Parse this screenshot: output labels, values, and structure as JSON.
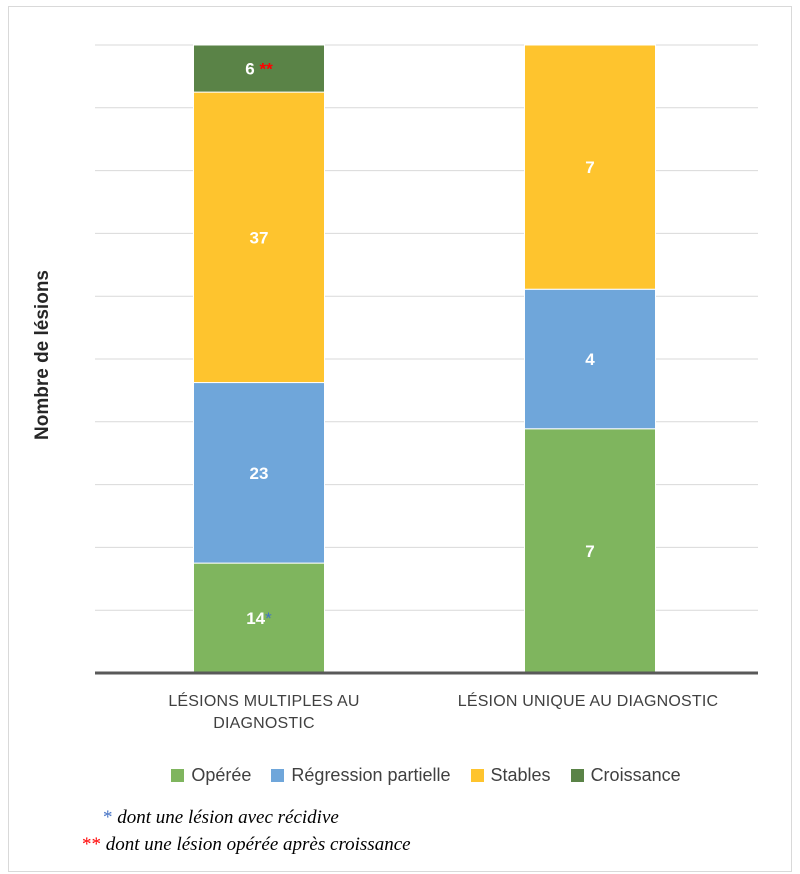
{
  "chart_data": {
    "type": "bar",
    "stacked": true,
    "ylabel": "Nombre de lésions",
    "grid": true,
    "legend_position": "bottom",
    "categories": [
      "LÉSIONS MULTIPLES AU DIAGNOSTIC",
      "LÉSION UNIQUE AU DIAGNOSTIC"
    ],
    "series": [
      {
        "name": "Opérée",
        "color": "#7fb55e",
        "values": [
          14,
          7
        ],
        "labels": [
          "14",
          "7"
        ],
        "marks": [
          "*",
          ""
        ]
      },
      {
        "name": "Régression partielle",
        "color": "#6fa6da",
        "values": [
          23,
          4
        ],
        "labels": [
          "23",
          "4"
        ],
        "marks": [
          "",
          ""
        ]
      },
      {
        "name": "Stables",
        "color": "#fec42e",
        "values": [
          37,
          7
        ],
        "labels": [
          "37",
          "7"
        ],
        "marks": [
          "",
          ""
        ]
      },
      {
        "name": "Croissance",
        "color": "#5a8347",
        "values": [
          6,
          0
        ],
        "labels": [
          "6",
          ""
        ],
        "marks": [
          "**",
          ""
        ]
      }
    ]
  },
  "notes": [
    {
      "mark": "*",
      "mark_color": "#4472c4",
      "text": " dont une lésion avec récidive"
    },
    {
      "mark": "**",
      "mark_color": "#ff0000",
      "text": " dont une lésion opérée après croissance"
    }
  ]
}
